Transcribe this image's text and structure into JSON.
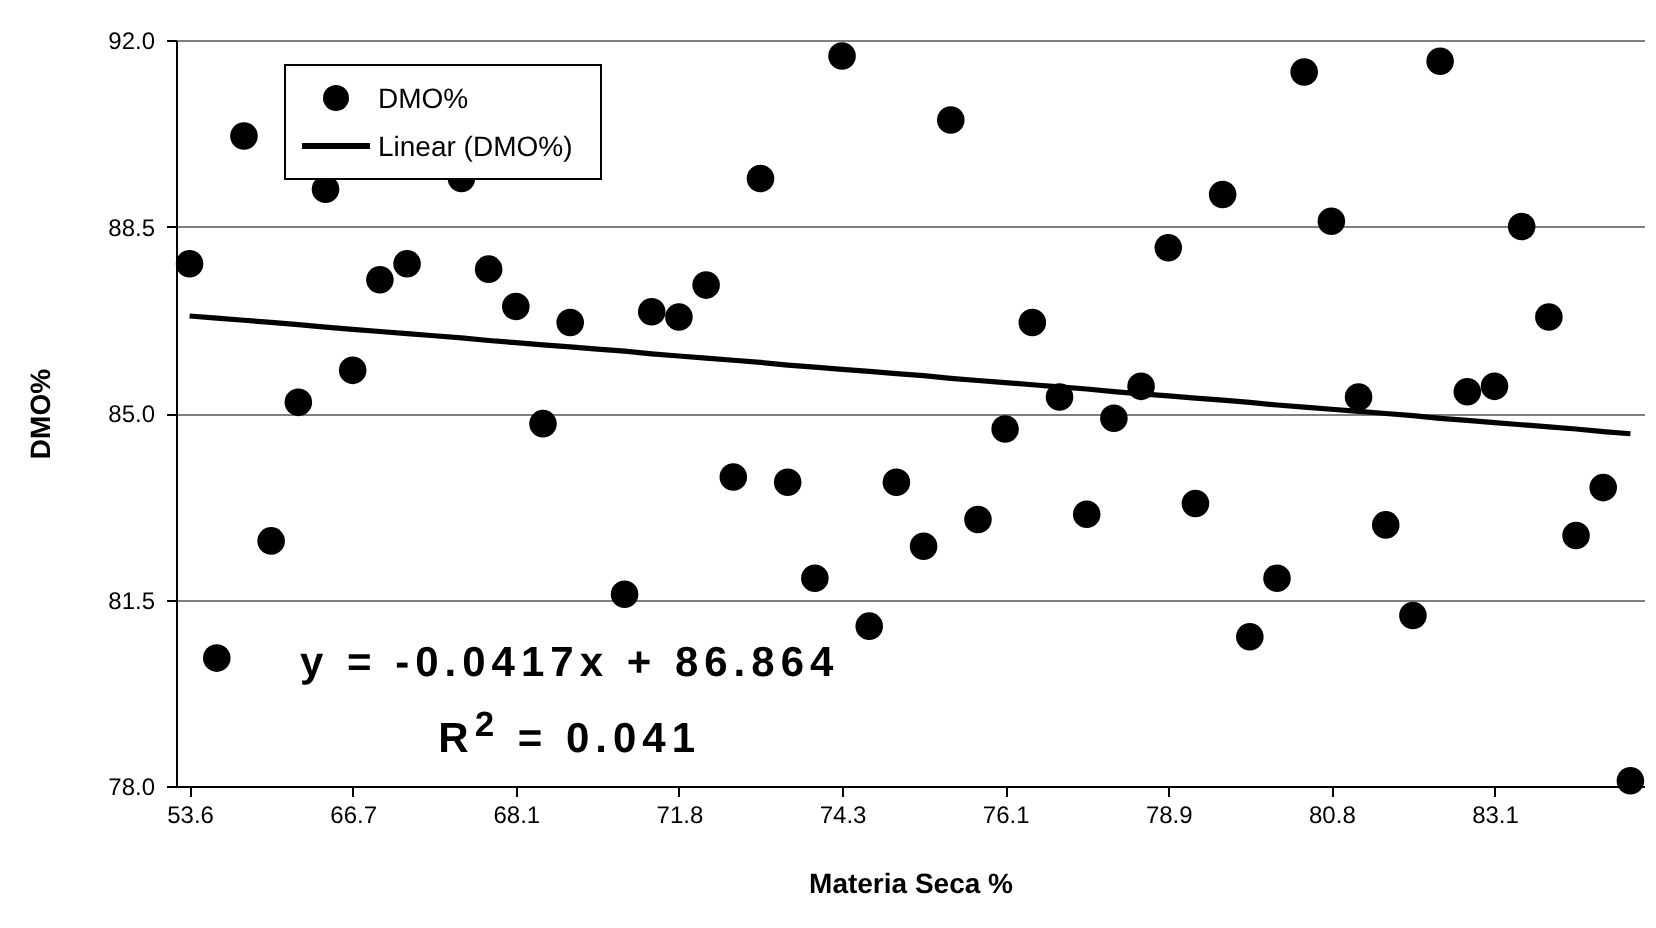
{
  "chart_data": {
    "type": "scatter",
    "xlabel": "Materia Seca %",
    "ylabel": "DMO%",
    "categories": [
      "53.6",
      null,
      null,
      null,
      null,
      null,
      "66.7",
      null,
      null,
      null,
      null,
      null,
      "68.1",
      null,
      null,
      null,
      null,
      null,
      "71.8",
      null,
      null,
      null,
      null,
      null,
      "74.3",
      null,
      null,
      null,
      null,
      null,
      "76.1",
      null,
      null,
      null,
      null,
      null,
      "78.9",
      null,
      null,
      null,
      null,
      null,
      "80.8",
      null,
      null,
      null,
      null,
      null,
      "83.1",
      null,
      null,
      null,
      null,
      null
    ],
    "series": [
      {
        "name": "DMO%",
        "marker": "circle",
        "color": "#000000",
        "values": [
          87.8,
          80.4,
          90.2,
          82.6,
          85.2,
          89.2,
          85.8,
          87.5,
          87.8,
          null,
          89.4,
          87.7,
          87.0,
          84.8,
          86.7,
          null,
          81.6,
          86.9,
          86.8,
          87.4,
          83.8,
          89.4,
          83.7,
          81.9,
          91.7,
          81.0,
          83.7,
          82.5,
          90.5,
          83.0,
          84.7,
          86.7,
          85.3,
          83.1,
          84.9,
          85.5,
          88.1,
          83.3,
          89.1,
          80.8,
          81.9,
          91.4,
          88.6,
          85.3,
          82.9,
          81.2,
          91.6,
          85.4,
          85.5,
          88.5,
          86.8,
          82.7,
          83.6,
          78.1
        ]
      },
      {
        "name": "Linear (DMO%)",
        "type": "line",
        "color": "#000000",
        "values": [
          86.82,
          86.78,
          86.74,
          86.7,
          86.66,
          86.61,
          86.57,
          86.53,
          86.49,
          86.45,
          86.41,
          86.36,
          86.32,
          86.28,
          86.24,
          86.2,
          86.16,
          86.11,
          86.07,
          86.03,
          85.99,
          85.95,
          85.9,
          85.86,
          85.82,
          85.78,
          85.74,
          85.7,
          85.65,
          85.61,
          85.57,
          85.53,
          85.49,
          85.45,
          85.4,
          85.36,
          85.32,
          85.28,
          85.24,
          85.2,
          85.15,
          85.11,
          85.07,
          85.03,
          84.99,
          84.95,
          84.9,
          84.86,
          84.82,
          84.78,
          84.74,
          84.7,
          84.65,
          84.61
        ]
      }
    ],
    "ylim": [
      78,
      92
    ],
    "yticks": [
      {
        "value": 78,
        "label": "78.0"
      },
      {
        "value": 81.5,
        "label": "81.5"
      },
      {
        "value": 85,
        "label": "85.0"
      },
      {
        "value": 88.5,
        "label": "88.5"
      },
      {
        "value": 92,
        "label": "92.0"
      }
    ],
    "grid": "y",
    "legend": "top left",
    "line_style": "solid",
    "annotations": [
      "y = -0.0417x + 86.864",
      "R$^{2}$ = 0.041"
    ]
  }
}
